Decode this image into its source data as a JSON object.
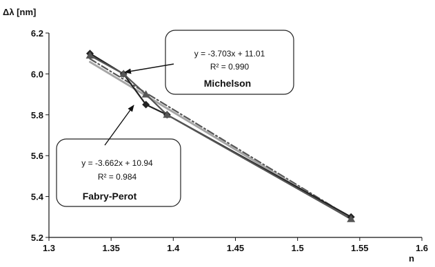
{
  "chart_data": {
    "type": "line",
    "xlabel": "n",
    "ylabel": "Δλ [nm]",
    "xlim": [
      1.3,
      1.6
    ],
    "ylim": [
      5.2,
      6.2
    ],
    "x_ticks": [
      "1.3",
      "1.35",
      "1.4",
      "1.45",
      "1.5",
      "1.55",
      "1.6"
    ],
    "y_ticks": [
      "5.2",
      "5.4",
      "5.6",
      "5.8",
      "6.0",
      "6.2"
    ],
    "grid": false,
    "series": [
      {
        "name": "Michelson",
        "marker": "diamond",
        "color": "#222222",
        "points": [
          [
            1.333,
            6.1
          ],
          [
            1.36,
            6.0
          ],
          [
            1.378,
            5.85
          ],
          [
            1.395,
            5.8
          ],
          [
            1.543,
            5.3
          ]
        ],
        "trendline": {
          "slope": -3.703,
          "intercept": 11.01,
          "style": "dash-dot",
          "color": "#555555"
        }
      },
      {
        "name": "Fabry-Perot",
        "marker": "triangle",
        "color": "#555555",
        "points": [
          [
            1.333,
            6.09
          ],
          [
            1.36,
            6.0
          ],
          [
            1.378,
            5.9
          ],
          [
            1.395,
            5.8
          ],
          [
            1.543,
            5.29
          ]
        ],
        "trendline": {
          "slope": -3.662,
          "intercept": 10.94,
          "style": "solid",
          "color": "#a6a6a6"
        }
      }
    ],
    "annotations": [
      {
        "id": "michelson",
        "equation": "y = -3.703x + 11.01",
        "r2": "R² = 0.990",
        "label": "Michelson",
        "arrow_to": [
          1.36,
          6.0
        ]
      },
      {
        "id": "fabry",
        "equation": "y = -3.662x + 10.94",
        "r2": "R² = 0.984",
        "label": "Fabry-Perot",
        "arrow_to": [
          1.38,
          5.87
        ]
      }
    ]
  }
}
